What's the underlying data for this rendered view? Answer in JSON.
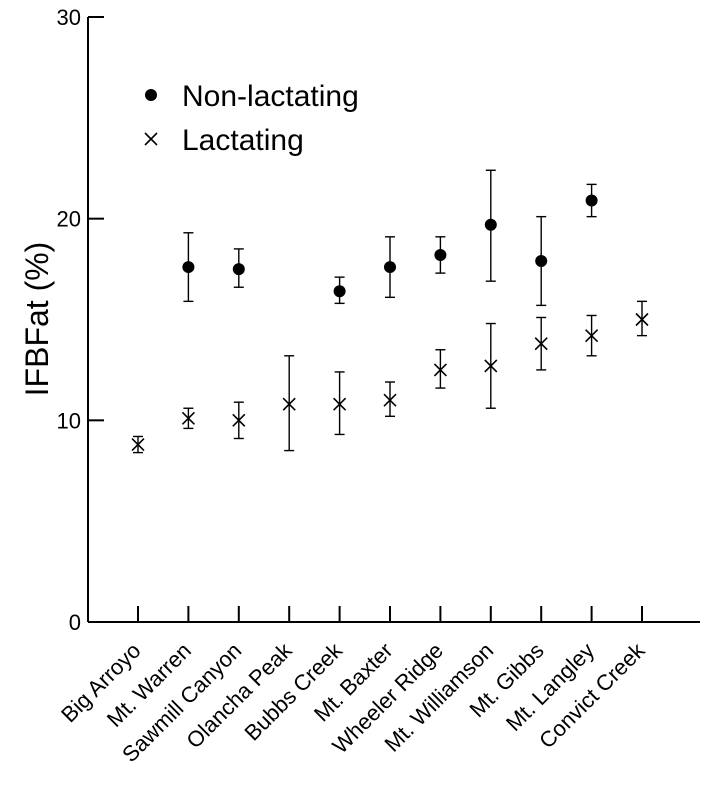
{
  "chart_data": {
    "type": "scatter",
    "title": "",
    "xlabel": "",
    "ylabel": "IFBFat (%)",
    "ylim": [
      0,
      30
    ],
    "yticks": [
      0,
      10,
      20,
      30
    ],
    "grid": false,
    "legend_position": "top-left",
    "categories": [
      "Big Arroyo",
      "Mt. Warren",
      "Sawmill Canyon",
      "Olancha Peak",
      "Bubbs Creek",
      "Mt. Baxter",
      "Wheeler Ridge",
      "Mt. Williamson",
      "Mt. Gibbs",
      "Mt. Langley",
      "Convict Creek"
    ],
    "series": [
      {
        "name": "Non-lactating",
        "marker": "filled-circle",
        "color": "#000000",
        "values": [
          null,
          17.6,
          17.5,
          null,
          16.4,
          17.6,
          18.2,
          19.7,
          17.9,
          20.9,
          null
        ],
        "err_low": [
          null,
          15.9,
          16.6,
          null,
          15.8,
          16.1,
          17.3,
          16.9,
          15.7,
          20.1,
          null
        ],
        "err_high": [
          null,
          19.3,
          18.5,
          null,
          17.1,
          19.1,
          19.1,
          22.4,
          20.1,
          21.7,
          null
        ]
      },
      {
        "name": "Lactating",
        "marker": "x",
        "color": "#000000",
        "values": [
          8.8,
          10.1,
          10.0,
          10.8,
          10.8,
          11.0,
          12.5,
          12.7,
          13.8,
          14.2,
          15.0
        ],
        "err_low": [
          8.4,
          9.6,
          9.1,
          8.5,
          9.3,
          10.2,
          11.6,
          10.6,
          12.5,
          13.2,
          14.2
        ],
        "err_high": [
          9.2,
          10.6,
          10.9,
          13.2,
          12.4,
          11.9,
          13.5,
          14.8,
          15.1,
          15.2,
          15.9
        ]
      }
    ]
  }
}
